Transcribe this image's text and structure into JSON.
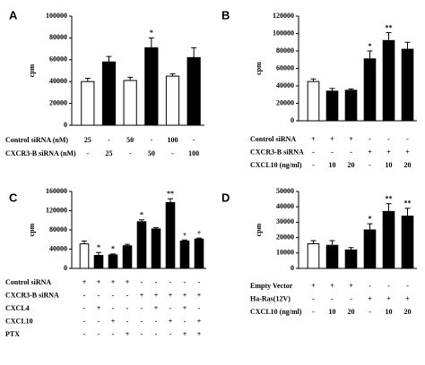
{
  "chart_data": [
    {
      "type": "bar",
      "panel": "A",
      "y_label": "cpm",
      "values": [
        40000,
        58000,
        41000,
        71000,
        45000,
        62000
      ],
      "errors": [
        3000,
        5000,
        3000,
        9000,
        2000,
        9000
      ],
      "colors": [
        "#ffffff",
        "#000000",
        "#ffffff",
        "#000000",
        "#ffffff",
        "#000000"
      ],
      "annotations": [
        null,
        null,
        null,
        "*",
        null,
        null
      ],
      "ylim": [
        0,
        100000
      ],
      "yticks": [
        0,
        20000,
        40000,
        60000,
        80000,
        100000
      ],
      "conditions": [
        {
          "label": "Control siRNA (nM)",
          "values": [
            "25",
            "-",
            "50",
            "-",
            "100",
            "-"
          ]
        },
        {
          "label": "CXCR3-B siRNA (nM)",
          "values": [
            "-",
            "25",
            "-",
            "50",
            "-",
            "100"
          ]
        }
      ]
    },
    {
      "type": "bar",
      "panel": "B",
      "y_label": "cpm",
      "values": [
        45000,
        34000,
        35000,
        71000,
        92000,
        82000
      ],
      "errors": [
        3000,
        3000,
        1500,
        9000,
        9000,
        8000
      ],
      "colors": [
        "#ffffff",
        "#000000",
        "#000000",
        "#000000",
        "#000000",
        "#000000"
      ],
      "annotations": [
        null,
        null,
        null,
        "*",
        "**",
        null
      ],
      "ylim": [
        0,
        120000
      ],
      "yticks": [
        0,
        20000,
        40000,
        60000,
        80000,
        100000,
        120000
      ],
      "conditions": [
        {
          "label": "Control siRNA",
          "values": [
            "+",
            "+",
            "+",
            "-",
            "-",
            "-"
          ]
        },
        {
          "label": "CXCR3-B siRNA",
          "values": [
            "-",
            "-",
            "-",
            "+",
            "+",
            "+"
          ]
        },
        {
          "label": "CXCL10 (ng/ml)",
          "values": [
            "-",
            "10",
            "20",
            "-",
            "10",
            "20"
          ]
        }
      ]
    },
    {
      "type": "bar",
      "panel": "C",
      "y_label": "cpm",
      "values": [
        51000,
        27000,
        28000,
        47000,
        97000,
        82000,
        137000,
        57000,
        61000
      ],
      "errors": [
        6000,
        6000,
        2000,
        3000,
        4000,
        3000,
        8000,
        2000,
        2000
      ],
      "colors": [
        "#ffffff",
        "#000000",
        "#000000",
        "#000000",
        "#000000",
        "#000000",
        "#000000",
        "#000000",
        "#000000"
      ],
      "annotations": [
        null,
        "*",
        "*",
        null,
        "*",
        null,
        "**",
        "+",
        "+"
      ],
      "ylim": [
        0,
        160000
      ],
      "yticks": [
        0,
        40000,
        80000,
        120000,
        160000
      ],
      "conditions": [
        {
          "label": "Control siRNA",
          "values": [
            "+",
            "+",
            "+",
            "+",
            "-",
            "-",
            "-",
            "-",
            "-"
          ]
        },
        {
          "label": "CXCR3-B siRNA",
          "values": [
            "-",
            "-",
            "-",
            "-",
            "+",
            "+",
            "+",
            "+",
            "+"
          ]
        },
        {
          "label": "CXCL4",
          "values": [
            "-",
            "+",
            "-",
            "-",
            "-",
            "+",
            "-",
            "+",
            "-"
          ]
        },
        {
          "label": "CXCL10",
          "values": [
            "-",
            "-",
            "+",
            "-",
            "-",
            "-",
            "+",
            "-",
            "+"
          ]
        },
        {
          "label": "PTX",
          "values": [
            "-",
            "-",
            "-",
            "+",
            "-",
            "-",
            "-",
            "+",
            "+"
          ]
        }
      ]
    },
    {
      "type": "bar",
      "panel": "D",
      "y_label": "cpm",
      "values": [
        16000,
        15000,
        12000,
        25000,
        37000,
        34000
      ],
      "errors": [
        2000,
        3000,
        1500,
        4000,
        5000,
        5000
      ],
      "colors": [
        "#ffffff",
        "#000000",
        "#000000",
        "#000000",
        "#000000",
        "#000000"
      ],
      "annotations": [
        null,
        null,
        null,
        "*",
        "**",
        "**"
      ],
      "ylim": [
        0,
        50000
      ],
      "yticks": [
        0,
        10000,
        20000,
        30000,
        40000,
        50000
      ],
      "conditions": [
        {
          "label": "Empty Vector",
          "values": [
            "+",
            "+",
            "+",
            "-",
            "-",
            "-"
          ]
        },
        {
          "label": "Ha-Ras(12V)",
          "values": [
            "-",
            "-",
            "-",
            "+",
            "+",
            "+"
          ]
        },
        {
          "label": "CXCL10 (ng/ml)",
          "values": [
            "-",
            "10",
            "20",
            "-",
            "10",
            "20"
          ]
        }
      ]
    }
  ]
}
